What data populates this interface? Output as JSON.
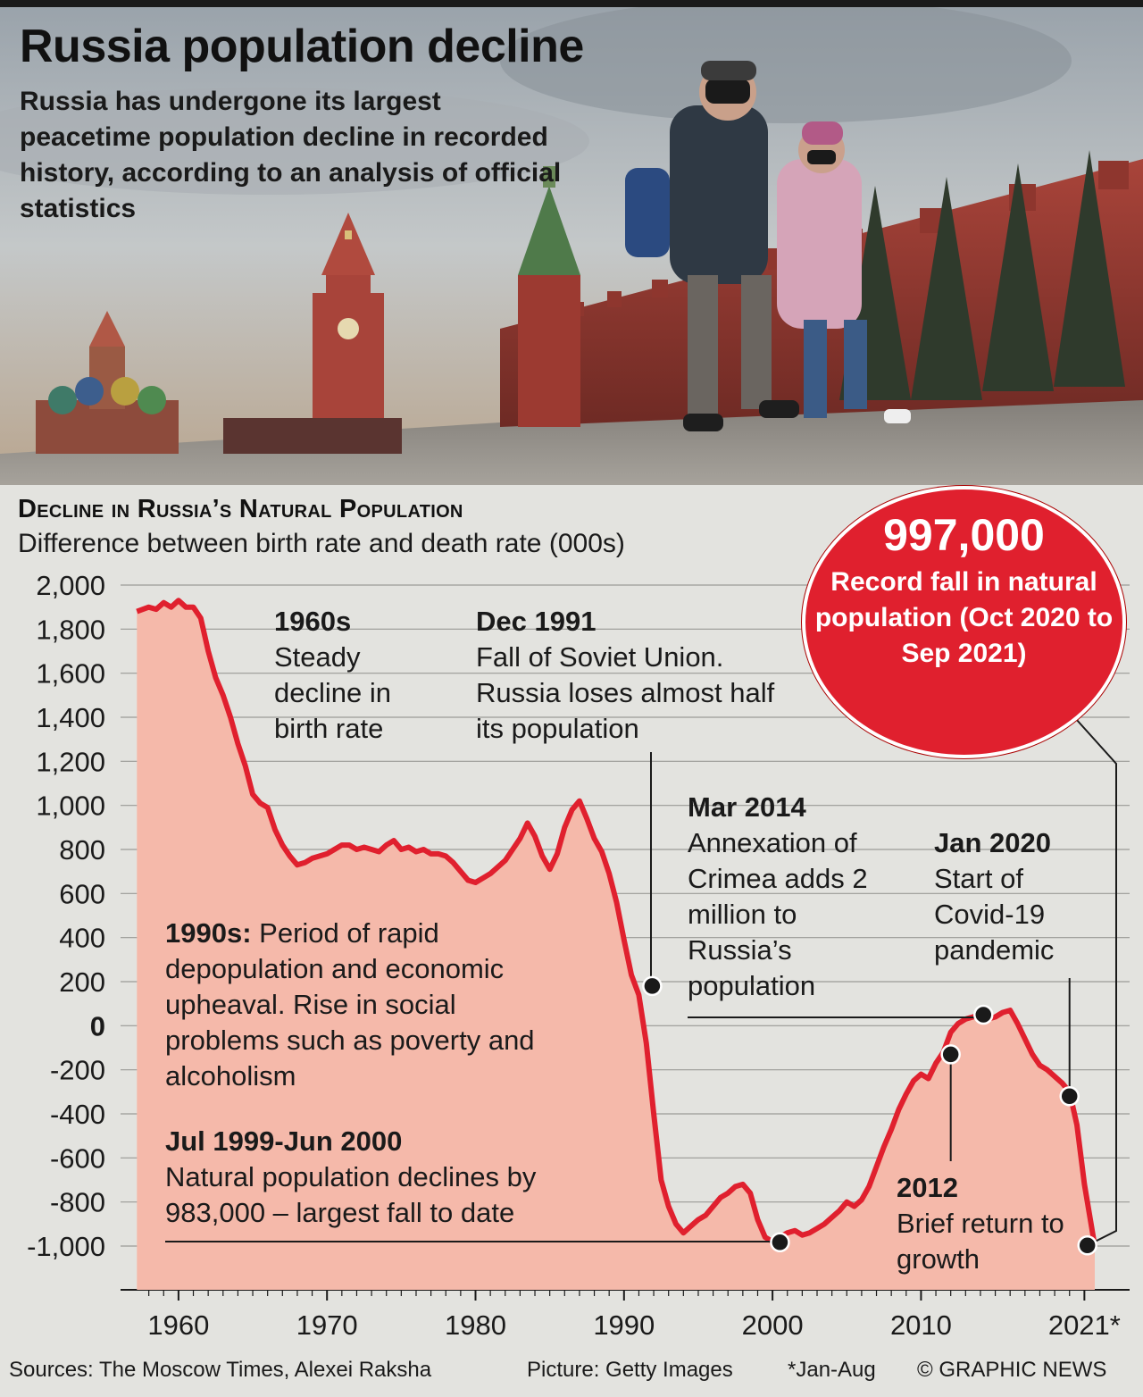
{
  "header": {
    "title": "Russia population decline",
    "subtitle": "Russia has undergone its largest peacetime population decline in recorded history, according to an analysis of official statistics"
  },
  "record": {
    "value": "997,000",
    "text": "Record fall in natural population (Oct 2020 to Sep 2021)"
  },
  "annotations": {
    "a1960s": {
      "title": "1960s",
      "text": "Steady decline in birth rate"
    },
    "dec1991": {
      "title": "Dec 1991",
      "text": "Fall of Soviet Union. Russia loses almost half its population"
    },
    "mar2014": {
      "title": "Mar 2014",
      "text": "Annexation of Crimea adds 2 million to Russia’s population"
    },
    "jan2020": {
      "title": "Jan 2020",
      "text": "Start of Covid-19 pandemic"
    },
    "a1990s": {
      "title": "1990s:",
      "text": "Period of rapid depopulation and economic upheaval. Rise in social problems such as poverty and alcoholism"
    },
    "jul1999": {
      "title": "Jul 1999-Jun 2000",
      "text": "Natural population declines by 983,000 – largest fall to date"
    },
    "y2012": {
      "title": "2012",
      "text": "Brief return to growth"
    }
  },
  "footer": {
    "sources": "Sources: The Moscow Times, Alexei Raksha",
    "picture": "Picture: Getty Images",
    "note": "*Jan-Aug",
    "credit": "© GRAPHIC NEWS"
  },
  "colors": {
    "line": "#e0202e",
    "area": "#f5b9aa",
    "circle": "#e0202e"
  },
  "chart_data": {
    "type": "area",
    "title": "Decline in Russia’s Natural Population",
    "subtitle": "Difference between birth rate and death rate (000s)",
    "xlabel": "",
    "ylabel": "",
    "xlim": [
      1957,
      2021.7
    ],
    "ylim": [
      -1000,
      2000
    ],
    "y_ticks": [
      2000,
      1800,
      1600,
      1400,
      1200,
      1000,
      800,
      600,
      400,
      200,
      0,
      -200,
      -400,
      -600,
      -800,
      -1000
    ],
    "y_tick_labels": [
      "2,000",
      "1,800",
      "1,600",
      "1,400",
      "1,200",
      "1,000",
      "800",
      "600",
      "400",
      "200",
      "0",
      "-200",
      "-400",
      "-600",
      "-800",
      "-1,000"
    ],
    "x_ticks": [
      1960,
      1970,
      1980,
      1990,
      2000,
      2010,
      2021
    ],
    "x_tick_labels": [
      "1960",
      "1970",
      "1980",
      "1990",
      "2000",
      "2010",
      "2021*"
    ],
    "grid": "horizontal",
    "series": [
      {
        "x": [
          1957.2,
          1958,
          1958.5,
          1959,
          1959.5,
          1960,
          1960.5,
          1961,
          1961.5,
          1962,
          1962.5,
          1963,
          1963.5,
          1964,
          1964.5,
          1965,
          1965.5,
          1966,
          1966.5,
          1967,
          1967.5,
          1968,
          1968.5,
          1969,
          1970,
          1970.5,
          1971,
          1971.5,
          1972,
          1972.5,
          1973,
          1973.5,
          1974,
          1974.5,
          1975,
          1975.5,
          1976,
          1976.5,
          1977,
          1977.5,
          1978,
          1978.5,
          1979,
          1979.5,
          1980,
          1980.5,
          1981,
          1981.5,
          1982,
          1982.5,
          1983,
          1983.5,
          1984,
          1984.5,
          1985,
          1985.5,
          1986,
          1986.5,
          1987,
          1987.5,
          1988,
          1988.5,
          1989,
          1989.5,
          1990,
          1990.5,
          1991,
          1991.5,
          1992,
          1992.5,
          1993,
          1993.5,
          1994,
          1994.5,
          1995,
          1995.5,
          1996,
          1996.5,
          1997,
          1997.5,
          1998,
          1998.5,
          1999,
          1999.5,
          2000,
          2000.5,
          2001,
          2001.5,
          2002,
          2002.5,
          2003,
          2003.5,
          2004,
          2004.5,
          2005,
          2005.5,
          2006,
          2006.5,
          2007,
          2007.5,
          2008,
          2008.5,
          2009,
          2009.5,
          2010,
          2010.5,
          2011,
          2011.5,
          2012,
          2012.5,
          2013,
          2013.5,
          2014,
          2014.5,
          2015,
          2015.5,
          2016,
          2016.5,
          2017,
          2017.5,
          2018,
          2018.5,
          2019,
          2019.5,
          2020,
          2020.5,
          2021,
          2021.7
        ],
        "values": [
          1880,
          1900,
          1890,
          1920,
          1900,
          1930,
          1900,
          1900,
          1850,
          1700,
          1580,
          1500,
          1400,
          1280,
          1180,
          1050,
          1010,
          990,
          890,
          820,
          770,
          730,
          740,
          760,
          780,
          800,
          820,
          820,
          800,
          810,
          800,
          790,
          820,
          840,
          800,
          810,
          790,
          800,
          780,
          780,
          770,
          740,
          700,
          660,
          650,
          670,
          690,
          720,
          750,
          800,
          850,
          920,
          860,
          770,
          710,
          780,
          900,
          980,
          1020,
          940,
          850,
          790,
          690,
          560,
          390,
          230,
          140,
          -80,
          -400,
          -700,
          -820,
          -900,
          -940,
          -910,
          -880,
          -860,
          -820,
          -780,
          -760,
          -730,
          -720,
          -760,
          -880,
          -960,
          -980,
          -960,
          -940,
          -930,
          -950,
          -940,
          -920,
          -900,
          -870,
          -840,
          -800,
          -820,
          -790,
          -730,
          -640,
          -550,
          -470,
          -380,
          -310,
          -250,
          -220,
          -240,
          -170,
          -120,
          -30,
          10,
          30,
          40,
          50,
          30,
          40,
          60,
          70,
          10,
          -60,
          -130,
          -180,
          -200,
          -230,
          -260,
          -300,
          -450,
          -720,
          -1000
        ]
      }
    ],
    "markers": [
      {
        "label": "Dec 1991",
        "x": 1991.9,
        "y": 180
      },
      {
        "label": "Mar 2014",
        "x": 2014.2,
        "y": 50
      },
      {
        "label": "Jan 2020",
        "x": 2020.0,
        "y": -320
      },
      {
        "label": "2012",
        "x": 2012.0,
        "y": -130
      },
      {
        "label": "Jul 1999-Jun 2000",
        "x": 2000.5,
        "y": -983
      },
      {
        "label": "Oct 2020 to Sep 2021",
        "x": 2021.2,
        "y": -997
      }
    ]
  }
}
